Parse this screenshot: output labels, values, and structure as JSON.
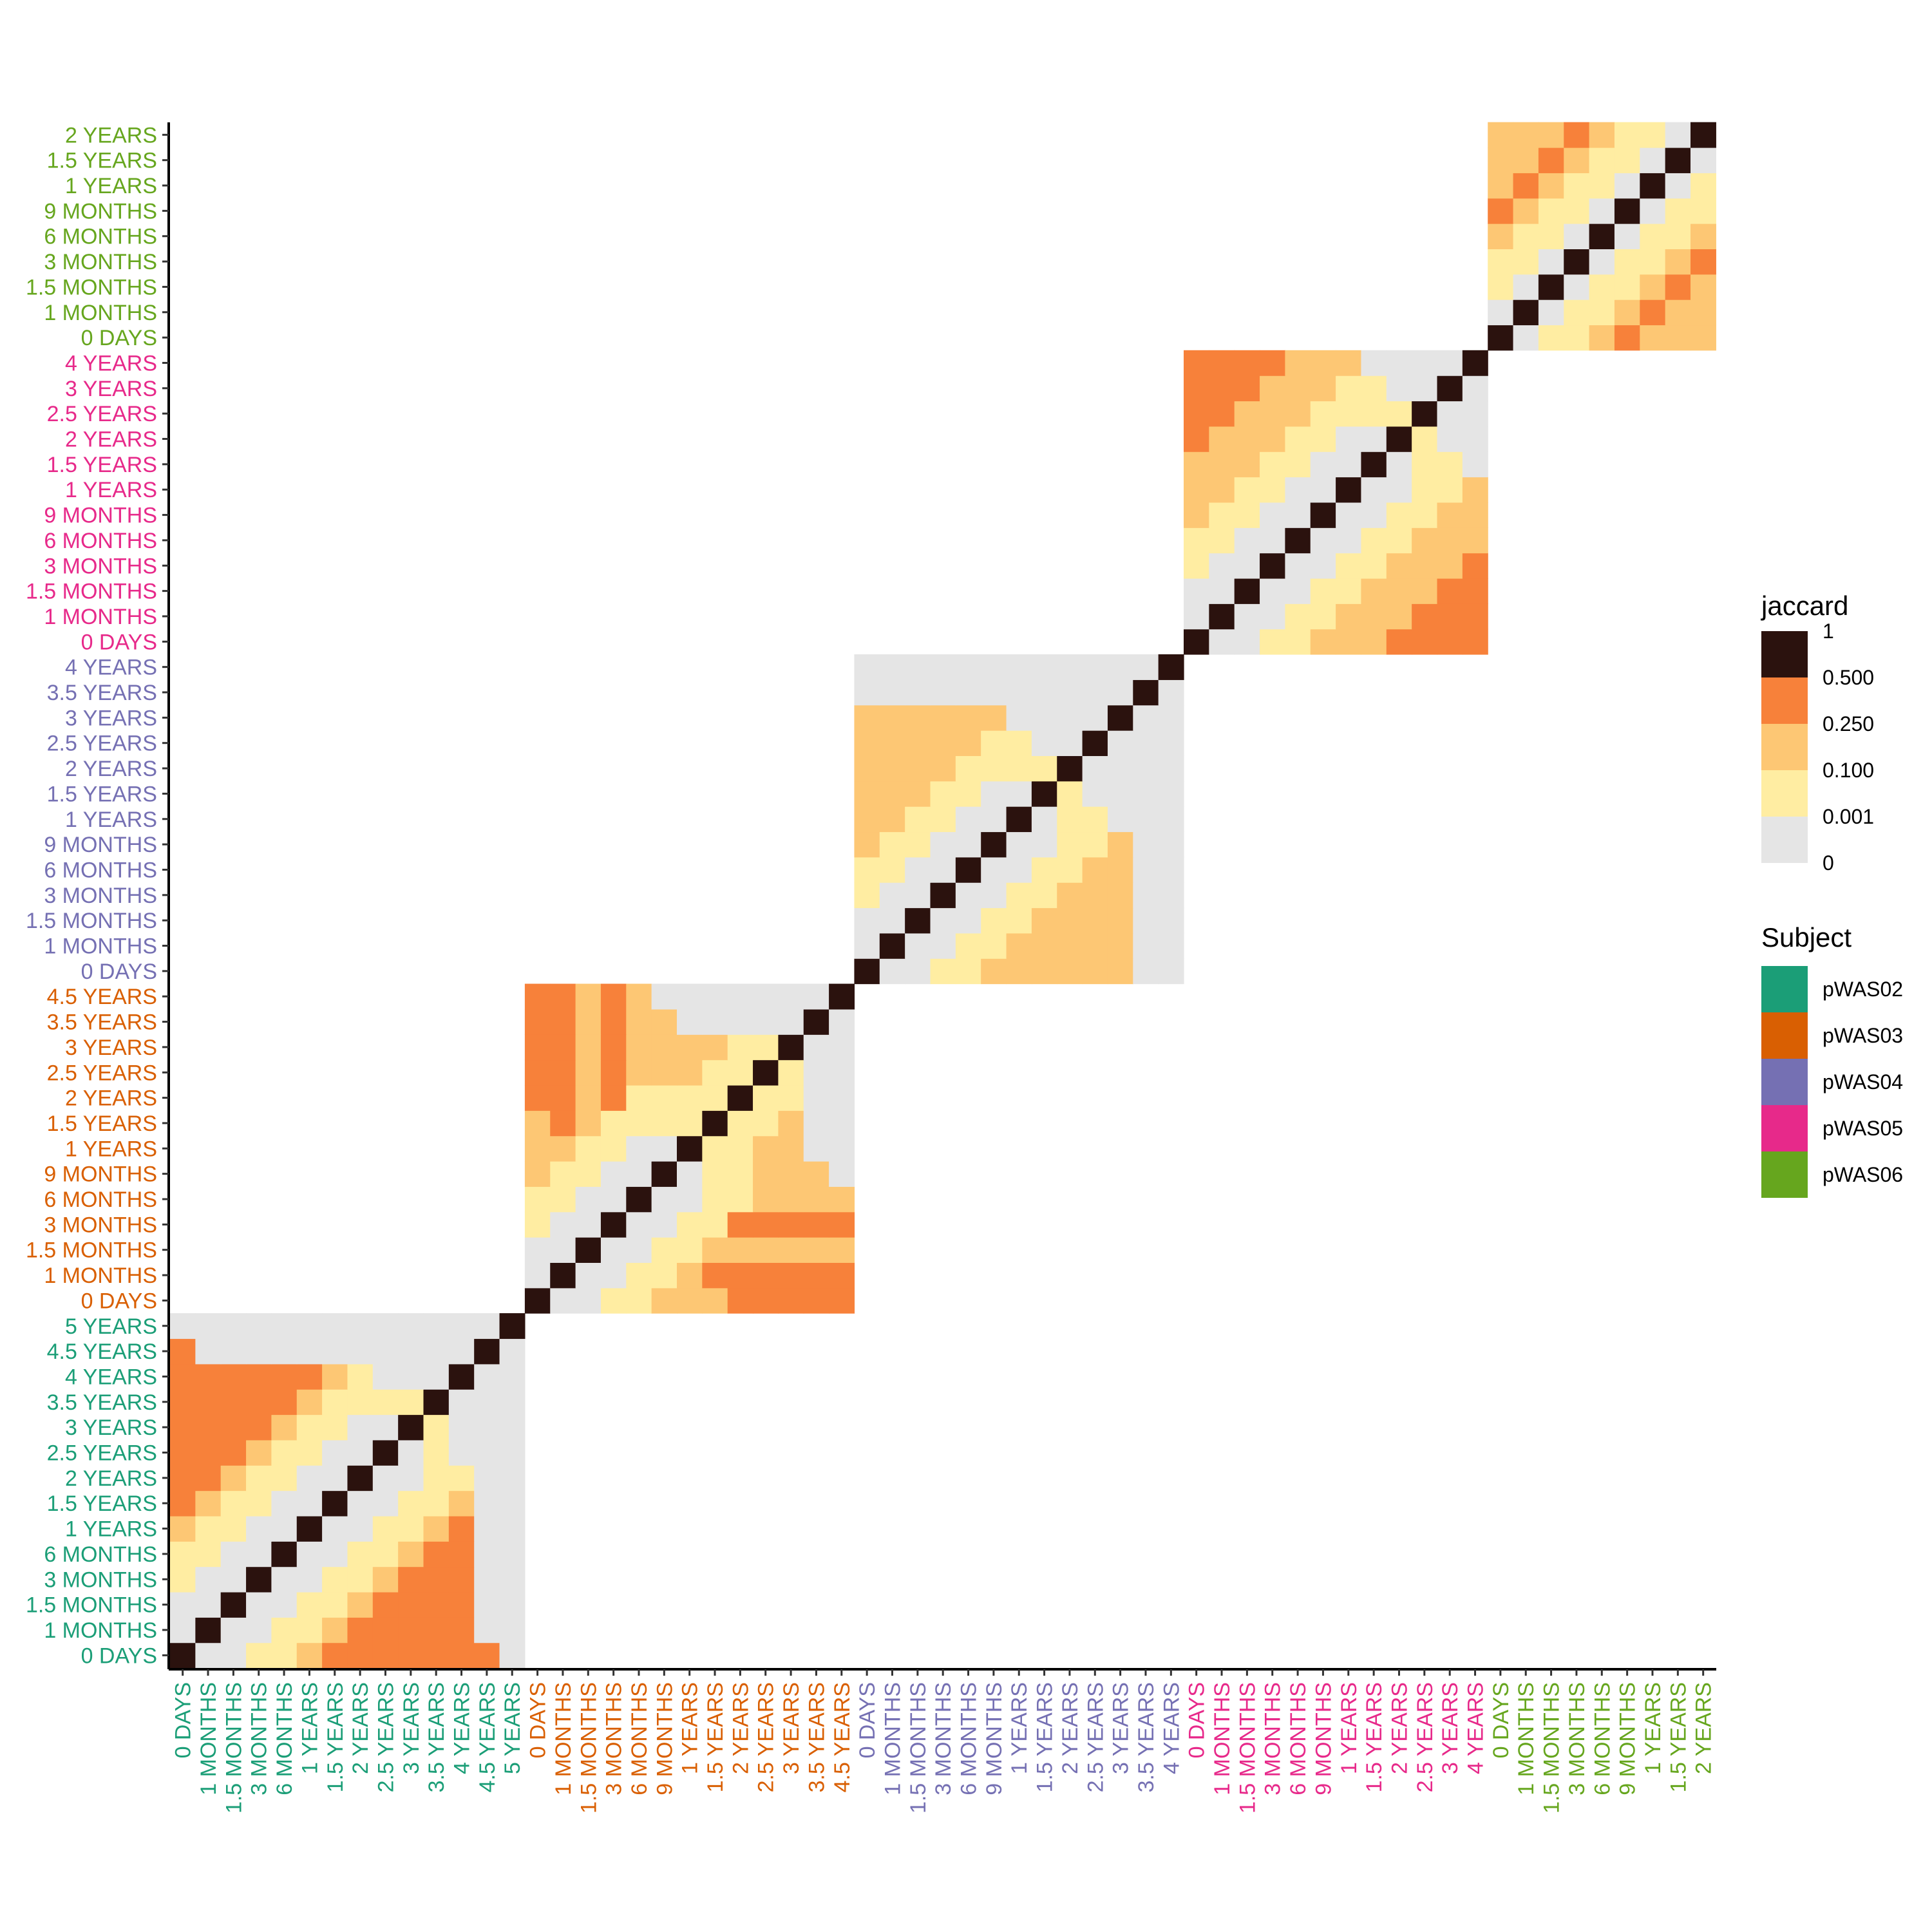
{
  "chart_data": {
    "type": "heatmap",
    "title": "",
    "xlabel": "",
    "ylabel": "",
    "subjects": [
      {
        "name": "pWAS02",
        "color": "#1B9E77",
        "timepoints": [
          "0 DAYS",
          "1 MONTHS",
          "1.5 MONTHS",
          "3 MONTHS",
          "6 MONTHS",
          "1 YEARS",
          "1.5 YEARS",
          "2 YEARS",
          "2.5 YEARS",
          "3 YEARS",
          "3.5 YEARS",
          "4 YEARS",
          "4.5 YEARS",
          "5 YEARS"
        ],
        "matrix": [
          "..1234444444",
          "..12344444",
          "..1234444",
          "..123444",
          "..12344",
          "..1234",
          "..123",
          "..12",
          ".1",
          "1",
          "",
          "",
          "",
          ""
        ]
      },
      {
        "name": "pWAS03",
        "color": "#D95F02",
        "timepoints": [
          "0 DAYS",
          "1 MONTHS",
          "1.5 MONTHS",
          "3 MONTHS",
          "6 MONTHS",
          "9 MONTHS",
          "1 YEARS",
          "1.5 YEARS",
          "2 YEARS",
          "2.5 YEARS",
          "3 YEARS",
          "3.5 YEARS",
          "4.5 YEARS"
        ],
        "matrix": [
          "..1233344444",
          "..123444444",
          "..12333333",
          "..1244444",
          "..123333",
          ".12333",
          "1233",
          "123",
          "12",
          "1",
          "",
          "",
          ""
        ]
      },
      {
        "name": "pWAS04",
        "color": "#7570B3",
        "timepoints": [
          "0 DAYS",
          "1 MONTHS",
          "1.5 MONTHS",
          "3 MONTHS",
          "6 MONTHS",
          "9 MONTHS",
          "1 YEARS",
          "1.5 YEARS",
          "2 YEARS",
          "2.5 YEARS",
          "3 YEARS",
          "3.5 YEARS",
          "4 YEARS"
        ],
        "matrix": [
          "..12333333",
          "..1233333",
          "..123333",
          "..12333",
          "..1233",
          "..123",
          ".12",
          "1",
          "",
          "",
          "",
          "",
          ""
        ]
      },
      {
        "name": "pWAS05",
        "color": "#E7298A",
        "timepoints": [
          "0 DAYS",
          "1 MONTHS",
          "1.5 MONTHS",
          "3 MONTHS",
          "6 MONTHS",
          "9 MONTHS",
          "1 YEARS",
          "1.5 YEARS",
          "2 YEARS",
          "2.5 YEARS",
          "3 YEARS",
          "4 YEARS"
        ],
        "matrix": [
          "..123334444",
          "..12333444",
          "..1233344",
          "..123334",
          "..12333",
          "..1233",
          "..123",
          ".12",
          "1",
          "",
          "",
          ""
        ]
      },
      {
        "name": "pWAS06",
        "color": "#66A61E",
        "timepoints": [
          "0 DAYS",
          "1 MONTHS",
          "1.5 MONTHS",
          "3 MONTHS",
          "6 MONTHS",
          "9 MONTHS",
          "1 YEARS",
          "1.5 YEARS",
          "2 YEARS"
        ],
        "matrix": [
          ".1234567",
          ".123456",
          ".12345",
          ".1234",
          ".123",
          ".12",
          ".1",
          "",
          ""
        ]
      }
    ]
  },
  "legend": {
    "fill_title": "jaccard",
    "fill_levels": [
      {
        "label": "1",
        "color": "#2B120E"
      },
      {
        "label": "0.500",
        "color": "#F7813A"
      },
      {
        "label": "0.250",
        "color": "#FDC774"
      },
      {
        "label": "0.100",
        "color": "#FFEDA2"
      },
      {
        "label": "0.001",
        "color": "#E5E5E5"
      },
      {
        "label": "0",
        "color": "#FFFFFF"
      }
    ],
    "subject_title": "Subject",
    "subjects": [
      {
        "label": "pWAS02",
        "color": "#1B9E77"
      },
      {
        "label": "pWAS03",
        "color": "#D95F02"
      },
      {
        "label": "pWAS04",
        "color": "#7570B3"
      },
      {
        "label": "pWAS05",
        "color": "#E7298A"
      },
      {
        "label": "pWAS06",
        "color": "#66A61E"
      }
    ]
  }
}
